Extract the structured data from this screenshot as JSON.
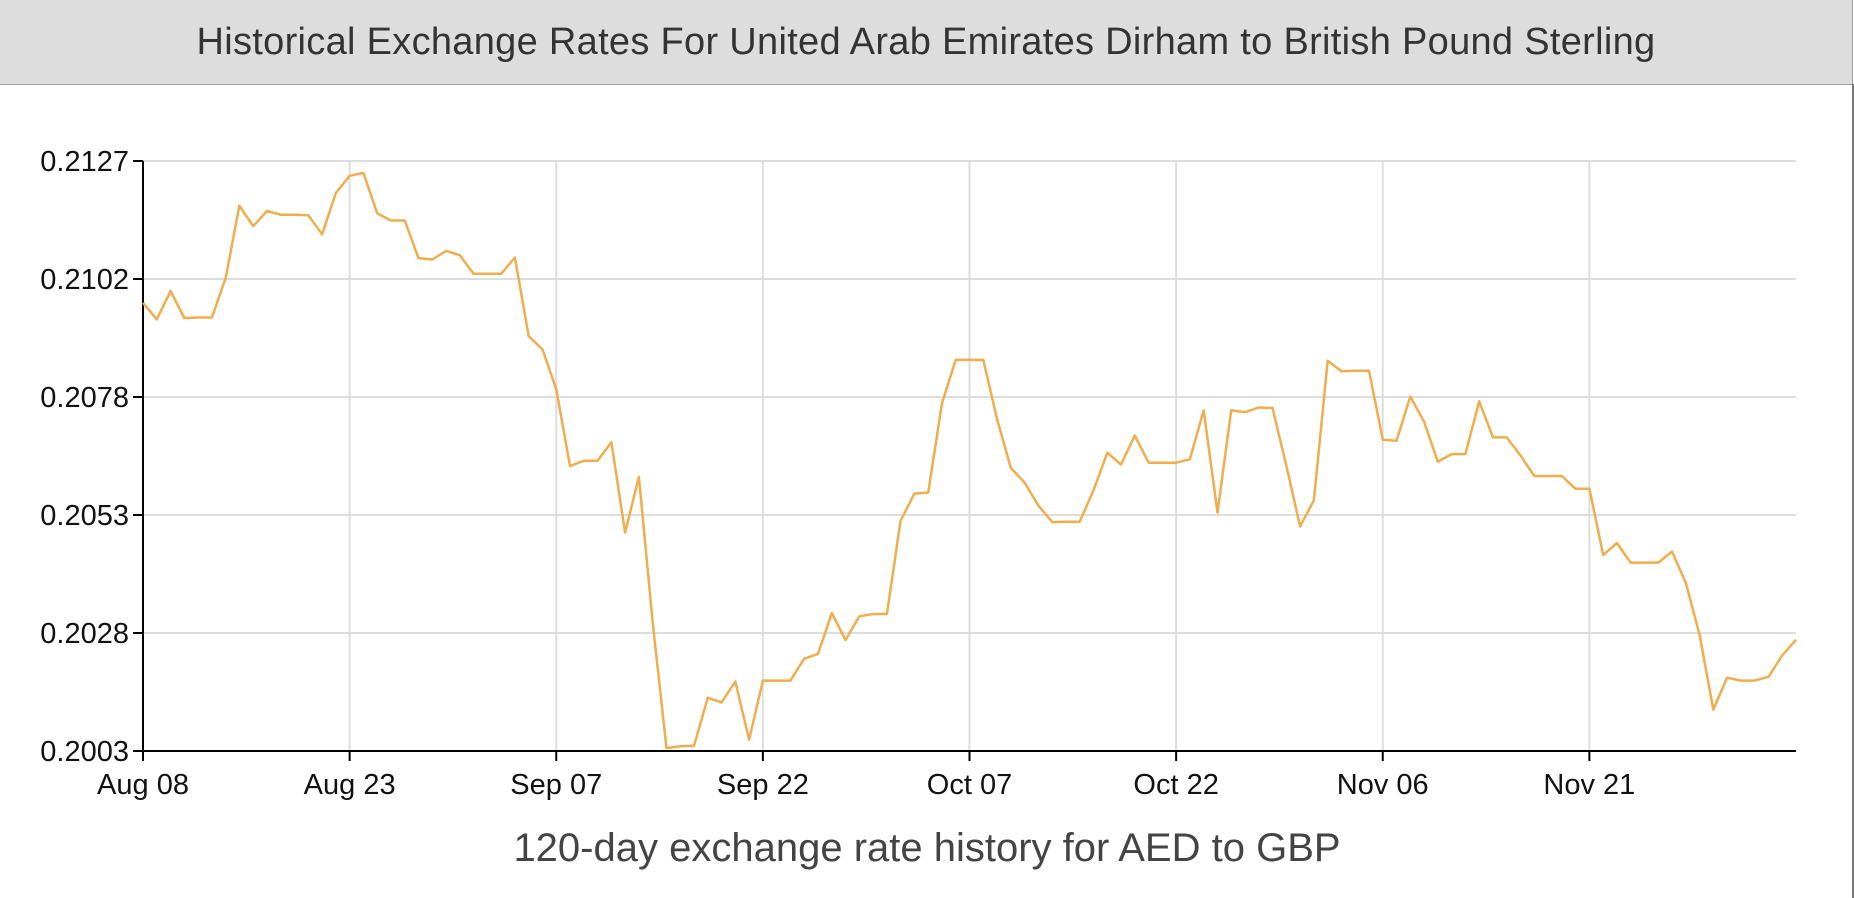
{
  "header": {
    "title": "Historical Exchange Rates For United Arab Emirates Dirham to British Pound Sterling"
  },
  "caption": "120-day exchange rate history for AED to GBP",
  "colors": {
    "line": "#f0ad4e",
    "grid": "#dddddd",
    "axis": "#000000",
    "header_bg": "#dddddd"
  },
  "chart_data": {
    "type": "line",
    "title": "Historical Exchange Rates For United Arab Emirates Dirham to British Pound Sterling",
    "xlabel": "120-day exchange rate history for AED to GBP",
    "ylabel": "",
    "grid": true,
    "x_ticks": [
      "Aug 08",
      "Aug 23",
      "Sep 07",
      "Sep 22",
      "Oct 07",
      "Oct 22",
      "Nov 06",
      "Nov 21"
    ],
    "y_ticks": [
      "0.2003",
      "0.2028",
      "0.2053",
      "0.2078",
      "0.2102",
      "0.2127"
    ],
    "ylim": [
      0.2003,
      0.2127
    ],
    "x_range": [
      "Aug 08",
      "Dec 05"
    ],
    "series": [
      {
        "values": [
          0.20972,
          0.20937,
          0.20997,
          0.2094,
          0.20941,
          0.20941,
          0.21024,
          0.21176,
          0.21133,
          0.21165,
          0.21157,
          0.21157,
          0.21156,
          0.21116,
          0.21203,
          0.21239,
          0.21245,
          0.2116,
          0.21145,
          0.21145,
          0.21066,
          0.21063,
          0.21081,
          0.21072,
          0.21033,
          0.21033,
          0.21033,
          0.21067,
          0.20902,
          0.20874,
          0.2079,
          0.20629,
          0.2064,
          0.2064,
          0.20679,
          0.20489,
          0.20606,
          0.203,
          0.20036,
          0.2004,
          0.20041,
          0.20142,
          0.20132,
          0.20176,
          0.20054,
          0.20178,
          0.20178,
          0.20178,
          0.20224,
          0.20234,
          0.2032,
          0.20263,
          0.20313,
          0.20318,
          0.20318,
          0.20514,
          0.20571,
          0.20573,
          0.20761,
          0.20852,
          0.20852,
          0.20852,
          0.20728,
          0.20625,
          0.20594,
          0.20546,
          0.20511,
          0.20512,
          0.20512,
          0.20578,
          0.20657,
          0.20632,
          0.20693,
          0.20636,
          0.20636,
          0.20636,
          0.20643,
          0.20746,
          0.20531,
          0.20746,
          0.20742,
          0.20752,
          0.20751,
          0.2063,
          0.20502,
          0.20557,
          0.2085,
          0.20828,
          0.20829,
          0.20829,
          0.20684,
          0.20682,
          0.20775,
          0.20722,
          0.20638,
          0.20654,
          0.20654,
          0.20765,
          0.20689,
          0.20689,
          0.20651,
          0.20608,
          0.20608,
          0.20608,
          0.20581,
          0.20581,
          0.20442,
          0.20467,
          0.20426,
          0.20426,
          0.20426,
          0.20449,
          0.20384,
          0.20274,
          0.20117,
          0.20184,
          0.20178,
          0.20178,
          0.20186,
          0.20231,
          0.20264
        ]
      }
    ]
  }
}
